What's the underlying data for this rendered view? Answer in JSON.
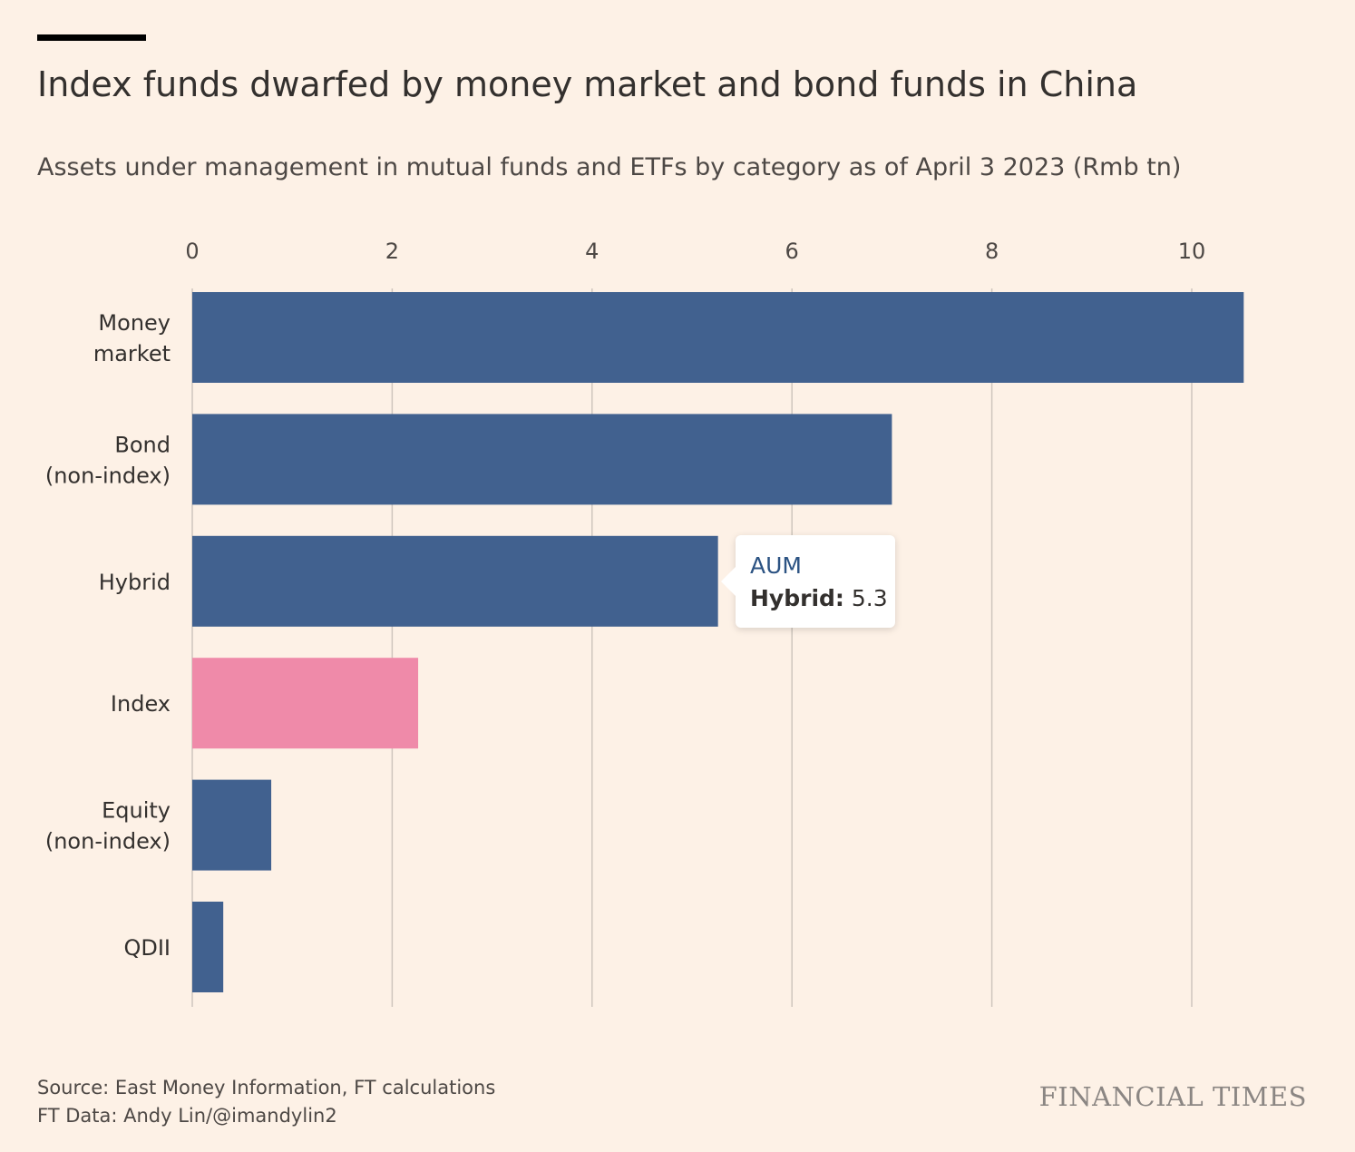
{
  "header": {
    "title": "Index funds dwarfed by money market and bond funds in China",
    "subtitle": "Assets under management in mutual funds and ETFs by category as of April 3 2023 (Rmb tn)"
  },
  "chart_data": {
    "type": "bar",
    "orientation": "horizontal",
    "title": "Index funds dwarfed by money market and bond funds in China",
    "subtitle": "Assets under management in mutual funds and ETFs by category as of April 3 2023 (Rmb tn)",
    "categories": [
      [
        "Money",
        "market"
      ],
      [
        "Bond",
        "(non-index)"
      ],
      [
        "Hybrid"
      ],
      [
        "Index"
      ],
      [
        "Equity",
        "(non-index)"
      ],
      [
        "QDII"
      ]
    ],
    "values": [
      10.52,
      7.0,
      5.26,
      2.26,
      0.79,
      0.31
    ],
    "highlight_index": 3,
    "xlim": [
      0,
      10.5
    ],
    "xticks": [
      0,
      2,
      4,
      6,
      8,
      10
    ],
    "tick_labels": [
      "0",
      "2",
      "4",
      "6",
      "8",
      "10"
    ],
    "grid": "vertical",
    "colors": {
      "bar": "#41618f",
      "highlight": "#ef8aa9",
      "grid": "#cfc6bd",
      "background": "#fdf1e6"
    }
  },
  "tooltip": {
    "series": "AUM",
    "category": "Hybrid:",
    "value": "5.3"
  },
  "footer": {
    "source": "Source: East Money Information, FT calculations",
    "credit": "FT Data: Andy Lin/@imandylin2"
  },
  "brand": "FINANCIAL TIMES"
}
